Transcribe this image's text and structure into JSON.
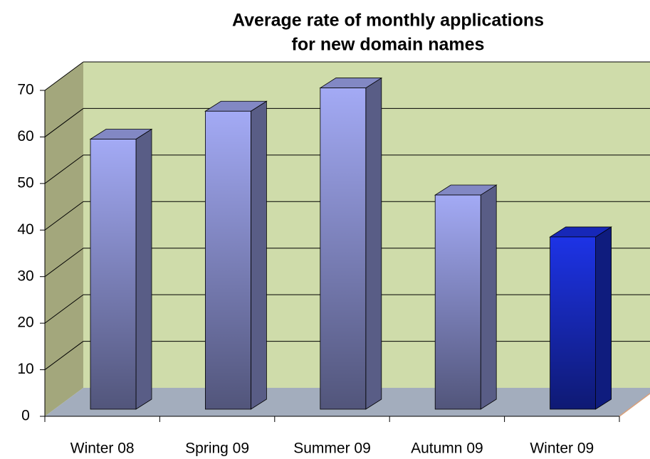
{
  "chart_data": {
    "type": "bar3d",
    "title": [
      "Average rate of monthly applications",
      "for new domain names"
    ],
    "categories": [
      "Winter 08",
      "Spring 09",
      "Summer 09",
      "Autumn 09",
      "Winter 09"
    ],
    "values": [
      58,
      64,
      69,
      46,
      37
    ],
    "colors": [
      "#a3aaf5",
      "#a3aaf5",
      "#a3aaf5",
      "#a3aaf5",
      "#1d33e6"
    ],
    "ylim": [
      0,
      70
    ],
    "yticks": [
      0,
      10,
      20,
      30,
      40,
      50,
      60,
      70
    ],
    "grid": true
  }
}
